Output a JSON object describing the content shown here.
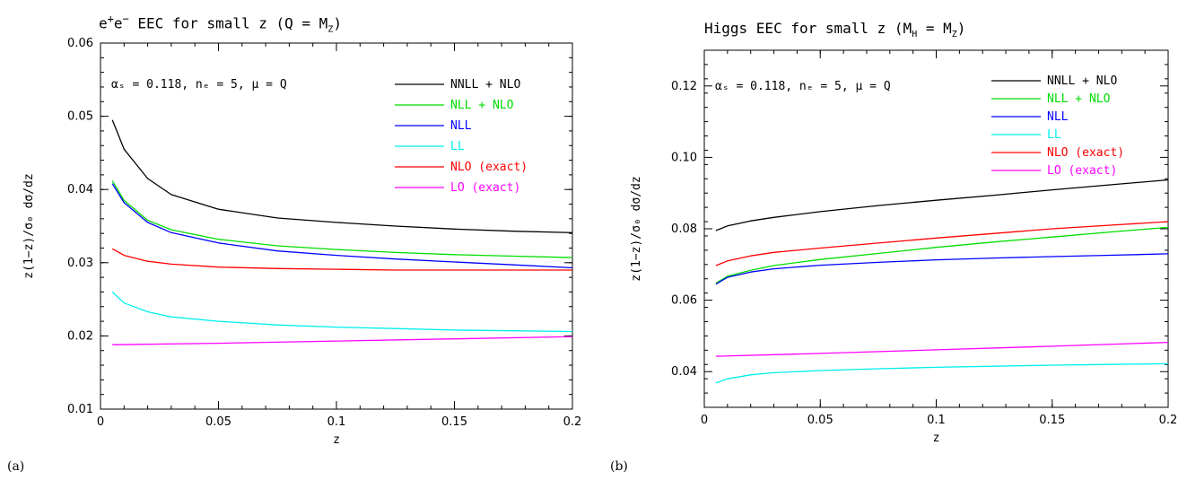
{
  "panel_a": {
    "title_pre": "e",
    "title_sup1": "+",
    "title_mid": "e",
    "title_sup2": "−",
    "title_post": " EEC for small z (Q = M",
    "title_sub": "Z",
    "title_end": ")",
    "letter": "(a)",
    "params": "αₛ = 0.118,  nₑ = 5,  μ = Q"
  },
  "panel_b": {
    "title_pre": "Higgs EEC for small z (M",
    "title_sub1": "H",
    "title_mid": " = M",
    "title_sub2": "Z",
    "title_end": ")",
    "letter": "(b)",
    "params": "αₛ = 0.118,  nₑ = 5,  μ = Q"
  },
  "chart_data": [
    {
      "type": "line",
      "title": "e+e− EEC for small z (Q = MZ)",
      "xlabel": "z",
      "ylabel": "z(1−z)/σ₀ dσ/dz",
      "xlim": [
        0,
        0.2
      ],
      "ylim": [
        0.01,
        0.06
      ],
      "xticks": [
        0,
        0.05,
        0.1,
        0.15,
        0.2
      ],
      "xtick_labels": [
        "0",
        "0.05",
        "0.1",
        "0.15",
        "0.2"
      ],
      "yticks": [
        0.01,
        0.02,
        0.03,
        0.04,
        0.05,
        0.06
      ],
      "ytick_labels": [
        "0.01",
        "0.02",
        "0.03",
        "0.04",
        "0.05",
        "0.06"
      ],
      "legend_position": "top-right",
      "series": [
        {
          "name": "NNLL + NLO",
          "color": "#000000",
          "x": [
            0.005,
            0.01,
            0.02,
            0.03,
            0.05,
            0.075,
            0.1,
            0.125,
            0.15,
            0.175,
            0.2
          ],
          "y": [
            0.0495,
            0.0455,
            0.0415,
            0.0393,
            0.0373,
            0.0361,
            0.0355,
            0.035,
            0.0346,
            0.0343,
            0.0341
          ]
        },
        {
          "name": "NLL + NLO",
          "color": "#00dd00",
          "x": [
            0.005,
            0.01,
            0.02,
            0.03,
            0.05,
            0.075,
            0.1,
            0.125,
            0.15,
            0.175,
            0.2
          ],
          "y": [
            0.0412,
            0.0385,
            0.0358,
            0.0345,
            0.0332,
            0.0323,
            0.0318,
            0.0314,
            0.0311,
            0.0309,
            0.0307
          ]
        },
        {
          "name": "NLL",
          "color": "#0000ff",
          "x": [
            0.005,
            0.01,
            0.02,
            0.03,
            0.05,
            0.075,
            0.1,
            0.125,
            0.15,
            0.175,
            0.2
          ],
          "y": [
            0.0408,
            0.0382,
            0.0355,
            0.0341,
            0.0327,
            0.0316,
            0.031,
            0.0305,
            0.0301,
            0.0297,
            0.0293
          ]
        },
        {
          "name": "LL",
          "color": "#00eeee",
          "x": [
            0.005,
            0.01,
            0.02,
            0.03,
            0.05,
            0.075,
            0.1,
            0.125,
            0.15,
            0.175,
            0.2
          ],
          "y": [
            0.026,
            0.0245,
            0.0233,
            0.0226,
            0.022,
            0.0215,
            0.0212,
            0.021,
            0.0208,
            0.0207,
            0.0206
          ]
        },
        {
          "name": "NLO (exact)",
          "color": "#ff0000",
          "x": [
            0.005,
            0.01,
            0.02,
            0.03,
            0.05,
            0.075,
            0.1,
            0.125,
            0.15,
            0.175,
            0.2
          ],
          "y": [
            0.0319,
            0.031,
            0.0302,
            0.0298,
            0.0294,
            0.0292,
            0.0291,
            0.029,
            0.029,
            0.029,
            0.029
          ]
        },
        {
          "name": "LO (exact)",
          "color": "#ff00ff",
          "x": [
            0.005,
            0.05,
            0.1,
            0.15,
            0.2
          ],
          "y": [
            0.0188,
            0.019,
            0.0193,
            0.0196,
            0.0199
          ]
        }
      ]
    },
    {
      "type": "line",
      "title": "Higgs EEC for small z (MH = MZ)",
      "xlabel": "z",
      "ylabel": "z(1−z)/σ₀ dσ/dz",
      "xlim": [
        0,
        0.2
      ],
      "ylim": [
        0.03,
        0.13
      ],
      "xticks": [
        0,
        0.05,
        0.1,
        0.15,
        0.2
      ],
      "xtick_labels": [
        "0",
        "0.05",
        "0.1",
        "0.15",
        "0.2"
      ],
      "yticks": [
        0.04,
        0.06,
        0.08,
        0.1,
        0.12
      ],
      "ytick_labels": [
        "0.04",
        "0.06",
        "0.08",
        "0.10",
        "0.12"
      ],
      "legend_position": "top-right",
      "series": [
        {
          "name": "NNLL + NLO",
          "color": "#000000",
          "x": [
            0.005,
            0.01,
            0.02,
            0.03,
            0.05,
            0.075,
            0.1,
            0.125,
            0.15,
            0.175,
            0.2
          ],
          "y": [
            0.0795,
            0.0808,
            0.0822,
            0.0832,
            0.0848,
            0.0865,
            0.088,
            0.0894,
            0.0909,
            0.0923,
            0.0937
          ]
        },
        {
          "name": "NLL + NLO",
          "color": "#00dd00",
          "x": [
            0.005,
            0.01,
            0.02,
            0.03,
            0.05,
            0.075,
            0.1,
            0.125,
            0.15,
            0.175,
            0.2
          ],
          "y": [
            0.0648,
            0.0667,
            0.0684,
            0.0697,
            0.0714,
            0.0731,
            0.0748,
            0.0763,
            0.0777,
            0.0791,
            0.0804
          ]
        },
        {
          "name": "NLL",
          "color": "#0000ff",
          "x": [
            0.005,
            0.01,
            0.02,
            0.03,
            0.05,
            0.075,
            0.1,
            0.125,
            0.15,
            0.175,
            0.2
          ],
          "y": [
            0.0645,
            0.0664,
            0.0679,
            0.0688,
            0.0698,
            0.0706,
            0.0713,
            0.0718,
            0.0722,
            0.0726,
            0.073
          ]
        },
        {
          "name": "LL",
          "color": "#00eeee",
          "x": [
            0.005,
            0.01,
            0.02,
            0.03,
            0.05,
            0.075,
            0.1,
            0.125,
            0.15,
            0.175,
            0.2
          ],
          "y": [
            0.0368,
            0.038,
            0.0391,
            0.0397,
            0.0403,
            0.0408,
            0.0412,
            0.0415,
            0.0418,
            0.042,
            0.0422
          ]
        },
        {
          "name": "NLO (exact)",
          "color": "#ff0000",
          "x": [
            0.005,
            0.01,
            0.02,
            0.03,
            0.05,
            0.075,
            0.1,
            0.125,
            0.15,
            0.175,
            0.2
          ],
          "y": [
            0.0697,
            0.071,
            0.0724,
            0.0734,
            0.0746,
            0.076,
            0.0774,
            0.0787,
            0.08,
            0.081,
            0.082
          ]
        },
        {
          "name": "LO (exact)",
          "color": "#ff00ff",
          "x": [
            0.005,
            0.05,
            0.1,
            0.15,
            0.2
          ],
          "y": [
            0.0443,
            0.0451,
            0.0461,
            0.0471,
            0.0482
          ]
        }
      ]
    }
  ]
}
